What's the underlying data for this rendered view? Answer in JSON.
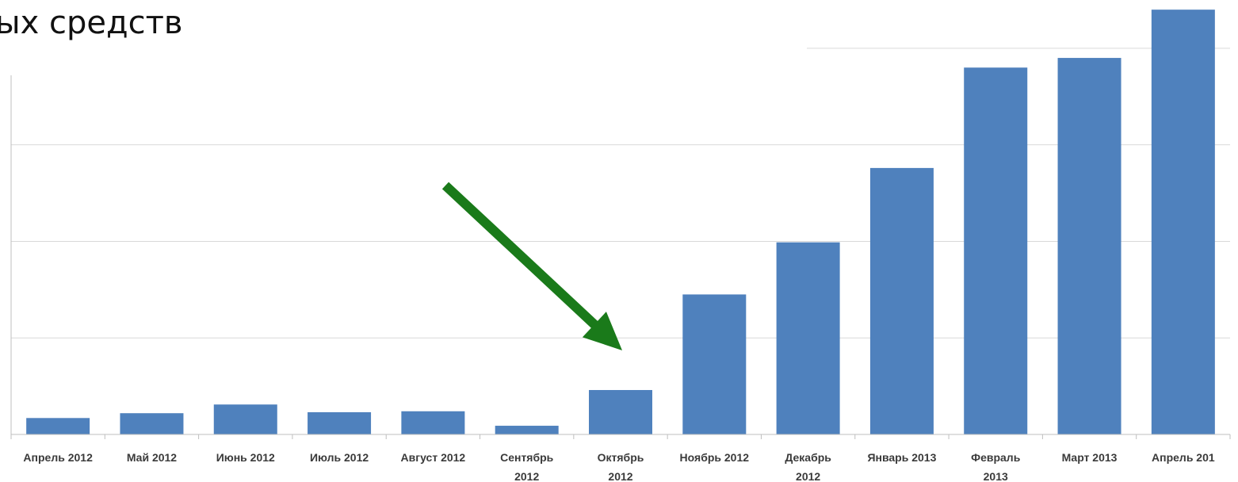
{
  "chart_data": {
    "type": "bar",
    "title": "ых средств",
    "categories": [
      [
        "Апрель 2012"
      ],
      [
        "Май 2012"
      ],
      [
        "Июнь 2012"
      ],
      [
        "Июль 2012"
      ],
      [
        "Август 2012"
      ],
      [
        "Сентябрь",
        "2012"
      ],
      [
        "Октябрь",
        "2012"
      ],
      [
        "Ноябрь 2012"
      ],
      [
        "Декабрь",
        "2012"
      ],
      [
        "Январь 2013"
      ],
      [
        "Февраль",
        "2013"
      ],
      [
        "Март 2013"
      ],
      [
        "Апрель 201"
      ]
    ],
    "values": [
      0.17,
      0.22,
      0.31,
      0.23,
      0.24,
      0.09,
      0.46,
      1.45,
      1.99,
      2.76,
      3.8,
      3.9,
      4.4
    ],
    "ylim": [
      0,
      4.5
    ],
    "grid": true,
    "bar_color": "#4f81bd",
    "grid_color": "#d9d9d9",
    "axis_color": "#bfbfbf",
    "annotation": {
      "type": "arrow",
      "color": "#1a7a1a",
      "points_to": "Октябрь 2012"
    }
  }
}
